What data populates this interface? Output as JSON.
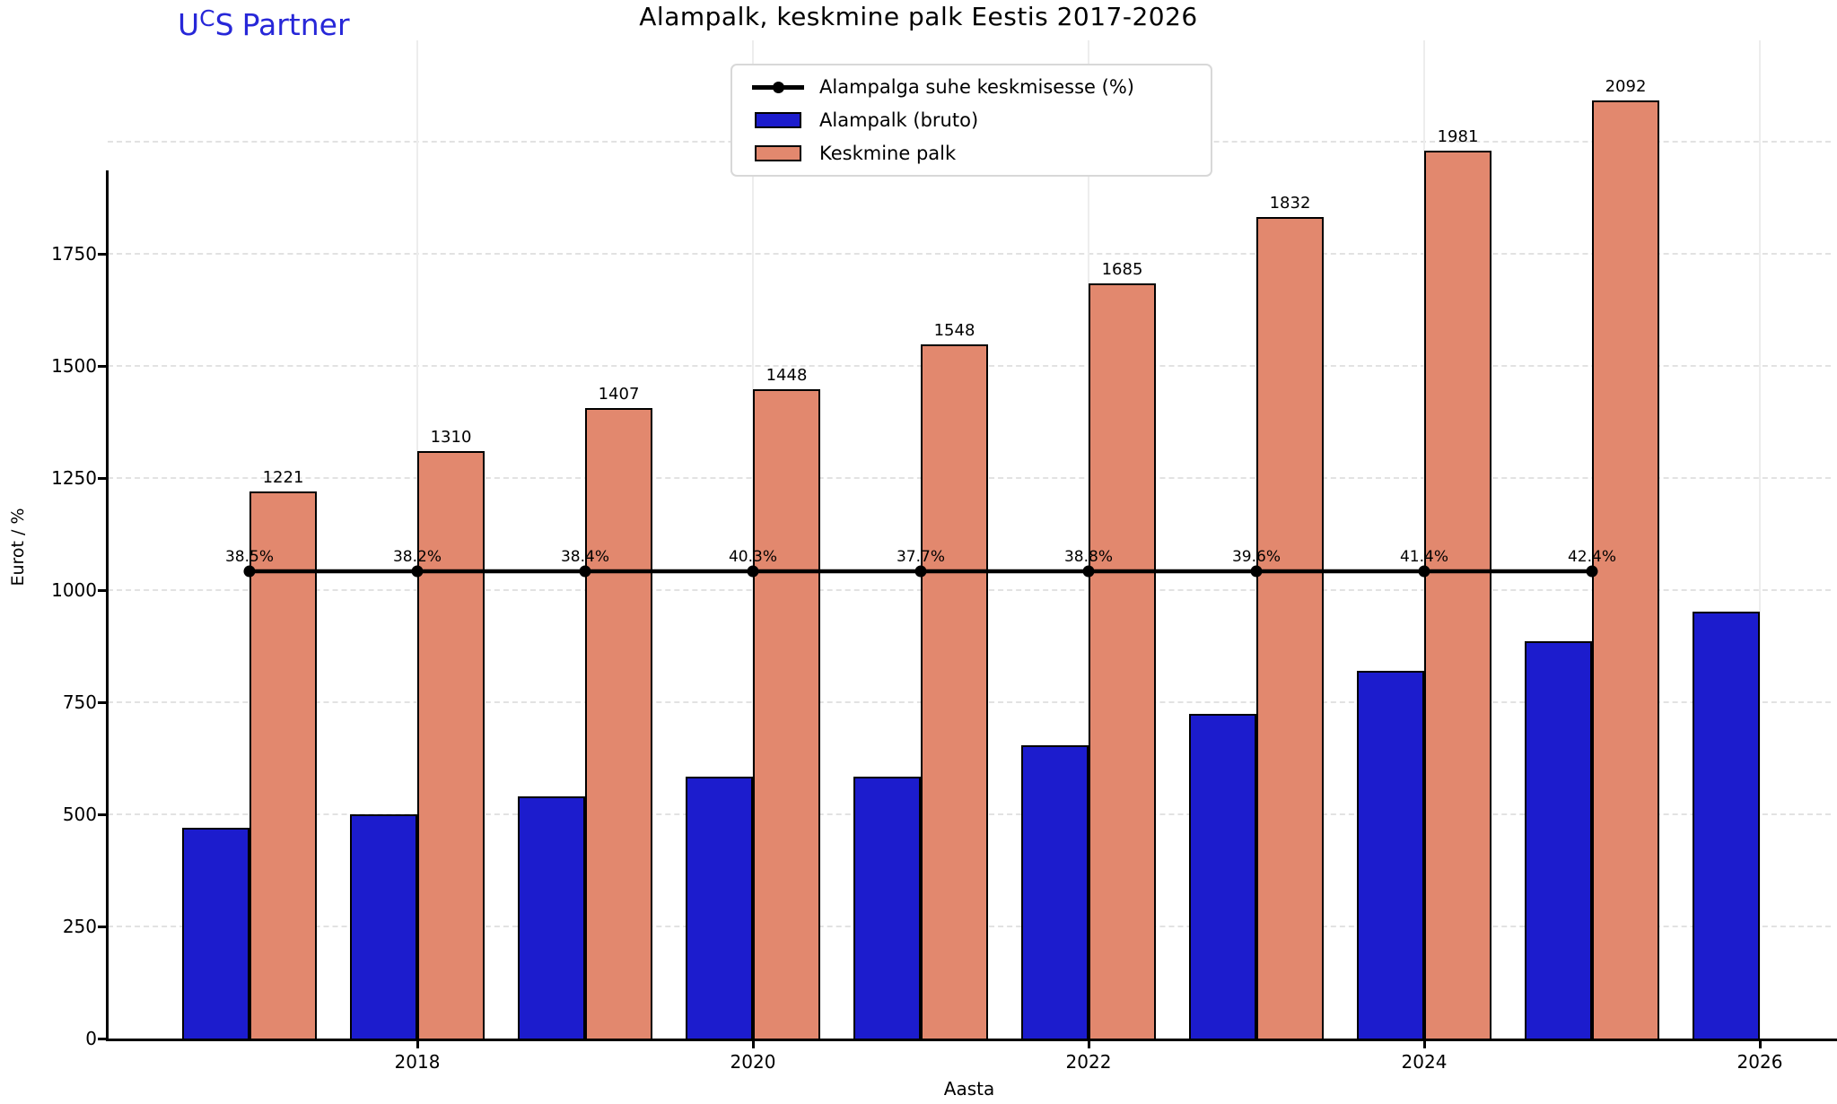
{
  "logo": {
    "u": "U",
    "c": "C",
    "s": "S",
    "rest": "Partner",
    "color": "#2727d8"
  },
  "chart_data": {
    "type": "bar",
    "title": "Alampalk, keskmine palk Eestis 2017-2026",
    "xlabel": "Aasta",
    "ylabel": "Eurot / %",
    "categories": [
      2017,
      2018,
      2019,
      2020,
      2021,
      2022,
      2023,
      2024,
      2025,
      2026
    ],
    "series": [
      {
        "name": "Alampalga suhe keskmisesse (%)",
        "type": "line",
        "color": "#000000",
        "values": [
          38.5,
          38.2,
          38.4,
          40.3,
          37.7,
          38.8,
          39.6,
          41.4,
          42.4,
          null
        ],
        "point_labels": [
          "38.5%",
          "38.2%",
          "38.4%",
          "40.3%",
          "37.7%",
          "38.8%",
          "39.6%",
          "41.4%",
          "42.4%",
          null
        ]
      },
      {
        "name": "Alampalk (bruto)",
        "type": "bar",
        "color": "#1c1ccd",
        "values": [
          470,
          500,
          540,
          584,
          584,
          654,
          725,
          820,
          886,
          953
        ],
        "show_value_labels": false
      },
      {
        "name": "Keskmine palk",
        "type": "bar",
        "color": "#e2886e",
        "values": [
          1221,
          1310,
          1407,
          1448,
          1548,
          1685,
          1832,
          1981,
          2092,
          null
        ],
        "show_value_labels": true
      }
    ],
    "yticks": [
      0,
      250,
      500,
      750,
      1000,
      1250,
      1500,
      1750
    ],
    "grid_y_values": [
      250,
      500,
      750,
      1000,
      1250,
      1500,
      1750,
      2000
    ],
    "xticks": [
      2018,
      2020,
      2022,
      2024,
      2026
    ],
    "ylim": [
      0,
      2226
    ],
    "grid": true,
    "legend_position": "upper center"
  }
}
